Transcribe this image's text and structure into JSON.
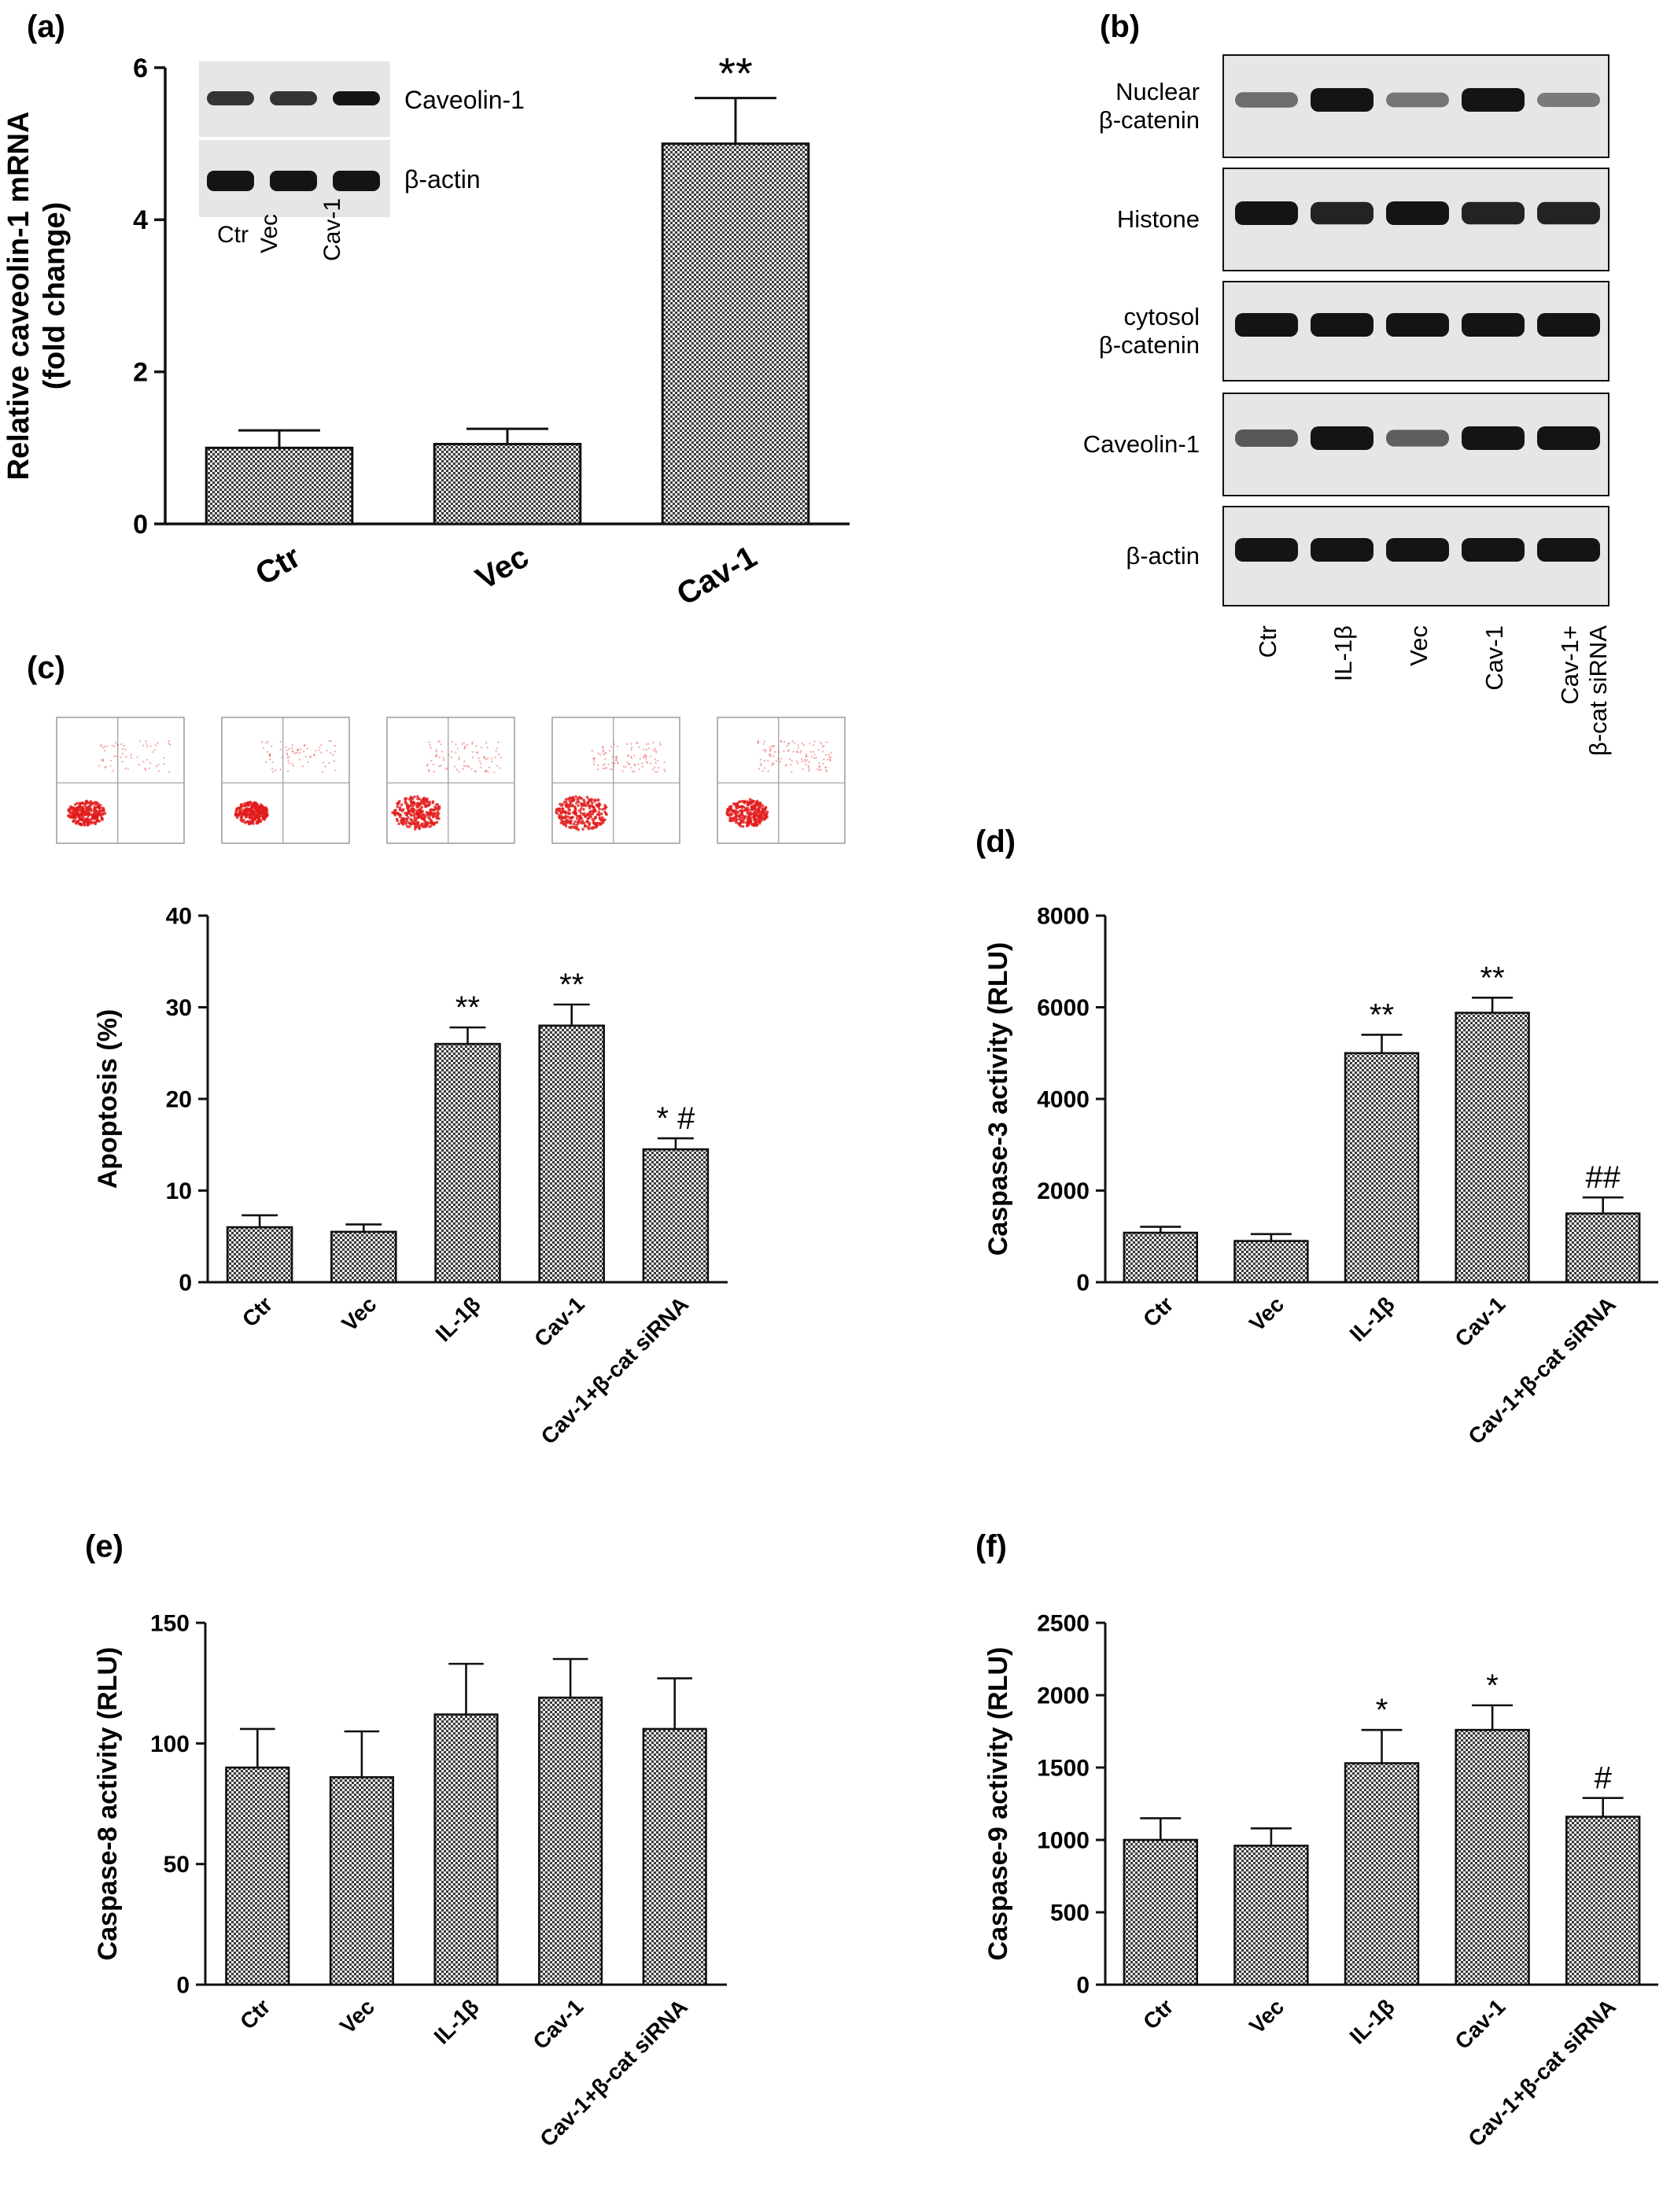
{
  "colors": {
    "bar_fill": "#cfcfcf",
    "ink": "#111111",
    "blot_bg": "#e6e6e6",
    "blot_band": "#141414",
    "dot": "#e21b1b",
    "gate": "#9a9a9a"
  },
  "chart_data": [
    {
      "panel": "(a)",
      "type": "bar",
      "title": "",
      "ylabel_lines": [
        "Relative caveolin-1  mRNA",
        "(fold change)"
      ],
      "categories": [
        "Ctr",
        "Vec",
        "Cav-1"
      ],
      "values": [
        1.0,
        1.05,
        5.0
      ],
      "errors": [
        0.23,
        0.2,
        0.6
      ],
      "annotations": [
        "",
        "",
        "**"
      ],
      "ylim": [
        0,
        6
      ],
      "yticks": [
        0,
        2,
        4,
        6
      ],
      "inset": {
        "type": "western_blot",
        "rows": [
          "Caveolin-1",
          "β-actin"
        ],
        "lanes": [
          "Ctr",
          "Vec",
          "Cav-1"
        ]
      }
    },
    {
      "panel": "(b)",
      "type": "western_blot",
      "rows": [
        {
          "label_lines": [
            "Nuclear",
            "β-catenin"
          ]
        },
        {
          "label_lines": [
            "Histone"
          ]
        },
        {
          "label_lines": [
            "cytosol",
            "β-catenin"
          ]
        },
        {
          "label_lines": [
            "Caveolin-1"
          ]
        },
        {
          "label_lines": [
            "β-actin"
          ]
        }
      ],
      "lanes": [
        {
          "label_lines": [
            "Ctr"
          ]
        },
        {
          "label_lines": [
            "IL-1β"
          ]
        },
        {
          "label_lines": [
            "Vec"
          ]
        },
        {
          "label_lines": [
            "Cav-1"
          ]
        },
        {
          "label_lines": [
            "Cav-1+",
            "β-cat siRNA"
          ]
        }
      ]
    },
    {
      "panel": "(c)",
      "type": "bar",
      "ylabel": "Apoptosis (%)",
      "categories": [
        "Ctr",
        "Vec",
        "IL-1β",
        "Cav-1",
        "Cav-1+β-cat siRNA"
      ],
      "values": [
        6,
        5.5,
        26,
        28,
        14.5
      ],
      "errors": [
        1.3,
        0.8,
        1.8,
        2.3,
        1.2
      ],
      "annotations": [
        "",
        "",
        "**",
        "**",
        "* #"
      ],
      "ylim": [
        0,
        40
      ],
      "yticks": [
        0,
        10,
        20,
        30,
        40
      ],
      "flow_plots": 5
    },
    {
      "panel": "(d)",
      "type": "bar",
      "ylabel": "Caspase-3 activity (RLU)",
      "categories": [
        "Ctr",
        "Vec",
        "IL-1β",
        "Cav-1",
        "Cav-1+β-cat siRNA"
      ],
      "values": [
        1080,
        900,
        5000,
        5880,
        1500
      ],
      "errors": [
        130,
        150,
        400,
        330,
        350
      ],
      "annotations": [
        "",
        "",
        "**",
        "**",
        "##"
      ],
      "ylim": [
        0,
        8000
      ],
      "yticks": [
        0,
        2000,
        4000,
        6000,
        8000
      ]
    },
    {
      "panel": "(e)",
      "type": "bar",
      "ylabel": "Caspase-8 activity (RLU)",
      "categories": [
        "Ctr",
        "Vec",
        "IL-1β",
        "Cav-1",
        "Cav-1+β-cat siRNA"
      ],
      "values": [
        90,
        86,
        112,
        119,
        106
      ],
      "errors": [
        16,
        19,
        21,
        16,
        21
      ],
      "annotations": [
        "",
        "",
        "",
        "",
        ""
      ],
      "ylim": [
        0,
        150
      ],
      "yticks": [
        0,
        50,
        100,
        150
      ]
    },
    {
      "panel": "(f)",
      "type": "bar",
      "ylabel": "Caspase-9 activity (RLU)",
      "categories": [
        "Ctr",
        "Vec",
        "IL-1β",
        "Cav-1",
        "Cav-1+β-cat siRNA"
      ],
      "values": [
        1000,
        960,
        1530,
        1760,
        1160
      ],
      "errors": [
        150,
        120,
        230,
        170,
        130
      ],
      "annotations": [
        "",
        "",
        "*",
        "*",
        "#"
      ],
      "ylim": [
        0,
        2500
      ],
      "yticks": [
        0,
        500,
        1000,
        1500,
        2000,
        2500
      ]
    }
  ]
}
